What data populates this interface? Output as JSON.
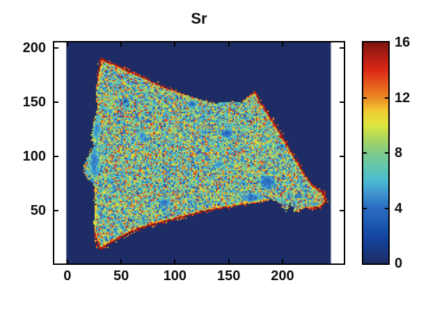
{
  "figure": {
    "title": "Sr"
  },
  "colors": {
    "background": "#ffffff",
    "axis": "#000000",
    "text": "#111111",
    "map_background": "#1d2c64"
  },
  "chart_data": {
    "type": "heatmap",
    "title": "Sr",
    "colormap": "jet",
    "x_ticks": [
      0,
      50,
      100,
      150,
      200
    ],
    "y_ticks": [
      50,
      100,
      150,
      200
    ],
    "xlim": [
      -12.2,
      257
    ],
    "ylim": [
      1,
      205
    ],
    "image_extent_x": [
      -1,
      245
    ],
    "grid": false,
    "colorbar": {
      "min": 0,
      "max": 16,
      "ticks": [
        0,
        4,
        8,
        12,
        16
      ],
      "inner_tick_values": [
        4,
        8,
        12
      ],
      "position": "right"
    },
    "background_value": 0,
    "colormap_stops": [
      [
        0,
        "#1d2c64"
      ],
      [
        1,
        "#173a85"
      ],
      [
        2,
        "#1548a5"
      ],
      [
        3,
        "#1e5bb5"
      ],
      [
        4,
        "#2a6cc2"
      ],
      [
        5,
        "#3f93cf"
      ],
      [
        6,
        "#4bbcd1"
      ],
      [
        7,
        "#62c7ae"
      ],
      [
        8,
        "#7fca8b"
      ],
      [
        9,
        "#a9d55f"
      ],
      [
        10,
        "#dce73e"
      ],
      [
        11,
        "#f0cd32"
      ],
      [
        12,
        "#ec8b24"
      ],
      [
        13,
        "#e55a1d"
      ],
      [
        14,
        "#dc2818"
      ],
      [
        15,
        "#b21d13"
      ],
      [
        16,
        "#7f1510"
      ]
    ],
    "region_outline": [
      [
        30,
        13,
        1.0
      ],
      [
        26,
        25,
        0.8
      ],
      [
        24,
        38,
        0.5
      ],
      [
        26,
        50,
        0.4
      ],
      [
        25,
        62,
        0.35
      ],
      [
        26,
        72,
        0.3
      ],
      [
        18,
        79,
        0.25
      ],
      [
        15,
        86,
        0.25
      ],
      [
        16,
        95,
        0.25
      ],
      [
        21,
        102,
        0.3
      ],
      [
        24,
        110,
        0.3
      ],
      [
        22,
        120,
        0.3
      ],
      [
        25,
        133,
        0.35
      ],
      [
        28,
        145,
        0.4
      ],
      [
        26,
        158,
        0.5
      ],
      [
        28,
        172,
        0.65
      ],
      [
        31,
        191,
        0.95
      ],
      [
        37,
        188,
        1.0
      ],
      [
        45,
        185,
        0.95
      ],
      [
        55,
        180,
        0.9
      ],
      [
        67,
        175,
        0.9
      ],
      [
        80,
        169,
        0.85
      ],
      [
        93,
        163,
        0.8
      ],
      [
        106,
        158,
        0.6
      ],
      [
        118,
        154,
        0.35
      ],
      [
        128,
        151,
        0.25
      ],
      [
        138,
        149,
        0.2
      ],
      [
        148,
        150,
        0.2
      ],
      [
        155,
        151,
        0.2
      ],
      [
        160,
        149,
        0.25
      ],
      [
        166,
        153,
        0.4
      ],
      [
        171,
        157,
        0.6
      ],
      [
        175,
        160,
        0.9
      ],
      [
        180,
        150,
        0.9
      ],
      [
        186,
        141,
        0.9
      ],
      [
        193,
        130,
        0.9
      ],
      [
        200,
        119,
        0.9
      ],
      [
        207,
        107,
        0.9
      ],
      [
        214,
        95,
        0.9
      ],
      [
        221,
        84,
        0.9
      ],
      [
        227,
        75,
        0.9
      ],
      [
        233,
        70,
        0.95
      ],
      [
        239,
        66,
        1.0
      ],
      [
        241,
        58,
        1.0
      ],
      [
        236,
        52,
        0.95
      ],
      [
        228,
        51,
        0.8
      ],
      [
        221,
        52,
        0.6
      ],
      [
        215,
        50,
        0.45
      ],
      [
        211,
        48,
        0.35
      ],
      [
        207,
        57,
        0.3
      ],
      [
        203,
        48,
        0.3
      ],
      [
        199,
        55,
        0.3
      ],
      [
        195,
        58,
        0.3
      ],
      [
        189,
        60,
        0.35
      ],
      [
        183,
        58,
        0.5
      ],
      [
        170,
        56,
        0.6
      ],
      [
        157,
        54,
        0.7
      ],
      [
        140,
        51,
        0.8
      ],
      [
        125,
        48,
        0.85
      ],
      [
        110,
        44,
        0.9
      ],
      [
        95,
        40,
        0.95
      ],
      [
        78,
        36,
        1.0
      ],
      [
        60,
        30,
        1.0
      ],
      [
        45,
        22,
        1.0
      ]
    ],
    "low_value_blobs": [
      [
        148,
        121,
        7,
        6,
        3.0
      ],
      [
        186,
        76,
        10,
        8,
        3.2
      ],
      [
        90,
        57,
        8,
        5,
        3.6
      ],
      [
        54,
        151,
        3.5,
        3,
        1.8
      ],
      [
        116,
        148,
        7,
        4,
        3.4
      ],
      [
        159,
        150,
        4,
        3,
        3.2
      ],
      [
        25,
        95,
        6,
        20,
        3.9
      ],
      [
        27,
        125,
        5,
        12,
        4.1
      ],
      [
        172,
        62,
        12,
        5,
        3.4
      ],
      [
        140,
        92,
        6,
        5,
        4.3
      ],
      [
        70,
        118,
        6,
        7,
        4.4
      ]
    ],
    "interior_value_distribution": [
      [
        0.4,
        4.5,
        7.5
      ],
      [
        0.22,
        7.5,
        9.5
      ],
      [
        0.18,
        9.5,
        12.5
      ],
      [
        0.08,
        12.5,
        14.5
      ],
      [
        0.12,
        2.5,
        4.5
      ]
    ],
    "edge_values": {
      "base": 11.5,
      "weight_gain": 4.5,
      "band_base": 1.2,
      "band_gain": 2.2
    },
    "seed": 42
  }
}
